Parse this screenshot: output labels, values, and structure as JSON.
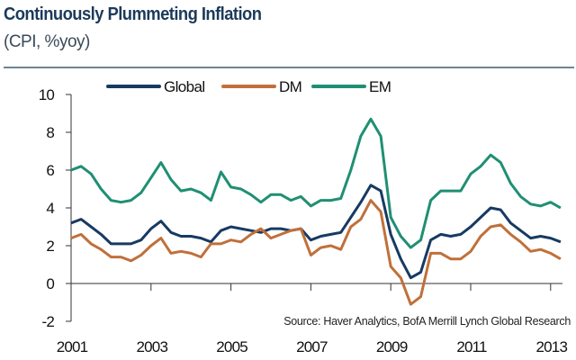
{
  "chart_data": {
    "type": "line",
    "title": "Continuously Plummeting Inflation",
    "subtitle": "(CPI, %yoy)",
    "source": "Source: Haver Analytics, BofA Merrill Lynch Global Research",
    "xlabel": "",
    "ylabel": "",
    "x_start": 2001,
    "x_step": 0.25,
    "xlim": [
      2001,
      2013.3
    ],
    "ylim": [
      -2,
      10
    ],
    "yticks": [
      "-2",
      "0",
      "2",
      "4",
      "6",
      "8",
      "10"
    ],
    "xticks": [
      "2001",
      "2003",
      "2005",
      "2007",
      "2009",
      "2011",
      "2013"
    ],
    "legend_position": "top",
    "series": [
      {
        "name": "Global",
        "color": "#173a63",
        "values": [
          3.2,
          3.4,
          3.0,
          2.6,
          2.1,
          2.1,
          2.1,
          2.3,
          2.9,
          3.3,
          2.7,
          2.5,
          2.5,
          2.4,
          2.2,
          2.8,
          3.0,
          2.9,
          2.8,
          2.7,
          2.9,
          2.9,
          2.8,
          2.9,
          2.3,
          2.5,
          2.6,
          2.7,
          3.5,
          4.3,
          5.2,
          4.9,
          2.6,
          1.3,
          0.3,
          0.6,
          2.3,
          2.6,
          2.5,
          2.6,
          3.0,
          3.5,
          4.0,
          3.9,
          3.2,
          2.8,
          2.4,
          2.5,
          2.4,
          2.2
        ]
      },
      {
        "name": "DM",
        "color": "#c0703a",
        "values": [
          2.4,
          2.6,
          2.1,
          1.8,
          1.4,
          1.4,
          1.2,
          1.5,
          2.0,
          2.4,
          1.6,
          1.7,
          1.6,
          1.4,
          2.1,
          2.1,
          2.3,
          2.2,
          2.6,
          2.9,
          2.4,
          2.6,
          2.8,
          2.9,
          1.5,
          1.9,
          2.0,
          1.8,
          3.0,
          3.4,
          4.4,
          3.8,
          0.9,
          0.3,
          -1.1,
          -0.7,
          1.6,
          1.6,
          1.3,
          1.3,
          1.7,
          2.5,
          3.0,
          3.1,
          2.6,
          2.2,
          1.7,
          1.8,
          1.6,
          1.3
        ]
      },
      {
        "name": "EM",
        "color": "#1f8f73",
        "values": [
          6.0,
          6.2,
          5.8,
          5.0,
          4.4,
          4.3,
          4.4,
          4.8,
          5.6,
          6.4,
          5.5,
          4.9,
          5.0,
          4.8,
          4.4,
          5.9,
          5.1,
          5.0,
          4.7,
          4.3,
          4.7,
          4.7,
          4.4,
          4.6,
          4.1,
          4.4,
          4.4,
          4.5,
          6.0,
          7.8,
          8.7,
          7.8,
          3.5,
          2.5,
          1.9,
          2.3,
          4.4,
          4.9,
          4.9,
          4.9,
          5.8,
          6.2,
          6.8,
          6.4,
          5.3,
          4.6,
          4.2,
          4.1,
          4.3,
          4.0
        ]
      }
    ]
  }
}
